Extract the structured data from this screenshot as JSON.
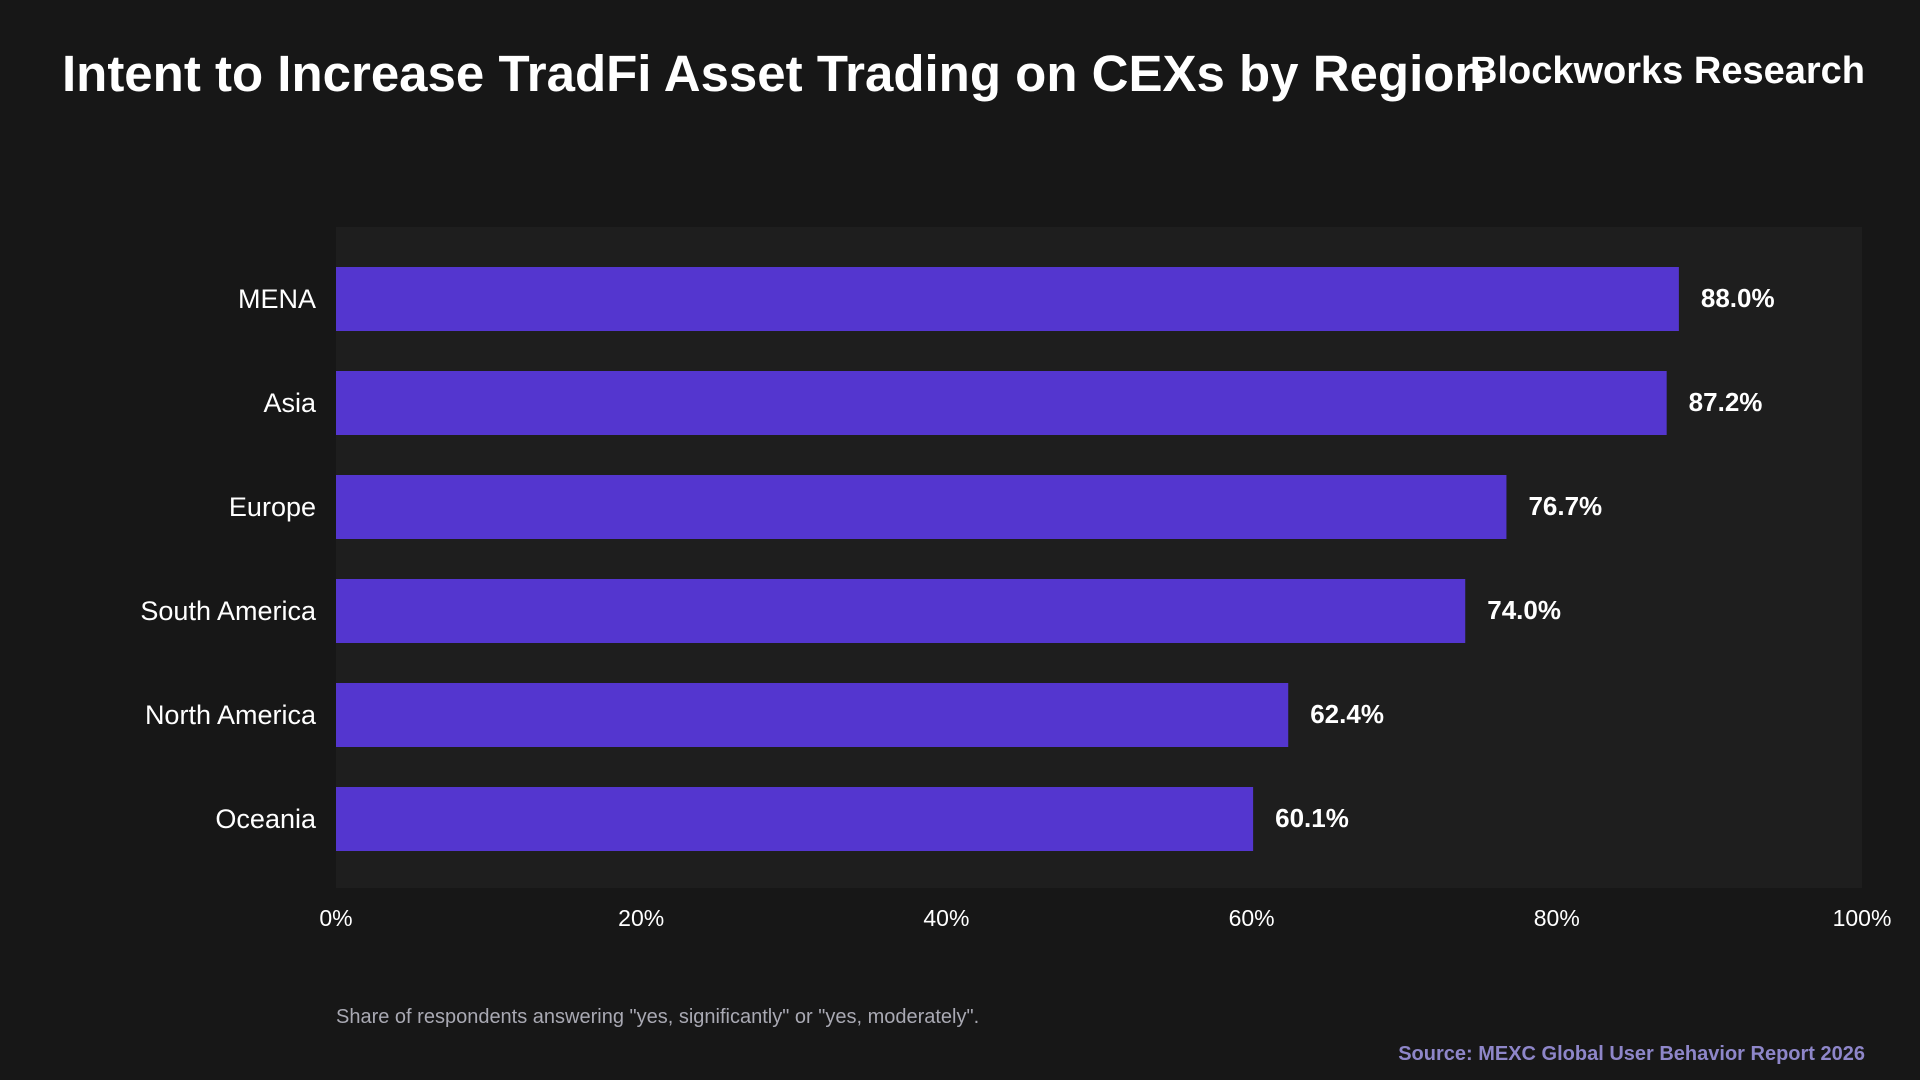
{
  "header": {
    "title": "Intent to Increase TradFi Asset Trading on CEXs by Region",
    "brand": "Blockworks Research"
  },
  "footer": {
    "note": "Share of respondents answering \"yes, significantly\" or \"yes, moderately\".",
    "source": "Source: MEXC Global User Behavior Report 2026"
  },
  "colors": {
    "background": "#171717",
    "plot_background": "#1e1e1e",
    "bar": "#5436cf",
    "text": "#ffffff",
    "muted_text": "#a9a9b3",
    "source_text": "#8e86c9"
  },
  "chart_data": {
    "type": "bar",
    "orientation": "horizontal",
    "categories": [
      "MENA",
      "Asia",
      "Europe",
      "South America",
      "North America",
      "Oceania"
    ],
    "values": [
      88.0,
      87.2,
      76.7,
      74.0,
      62.4,
      60.1
    ],
    "data_labels": [
      "88.0%",
      "87.2%",
      "76.7%",
      "74.0%",
      "62.4%",
      "60.1%"
    ],
    "xlim": [
      0,
      100
    ],
    "xticks": [
      0,
      20,
      40,
      60,
      80,
      100
    ],
    "xtick_labels": [
      "0%",
      "20%",
      "40%",
      "60%",
      "80%",
      "100%"
    ],
    "xlabel": "",
    "ylabel": "",
    "grid": false,
    "legend": "none"
  }
}
